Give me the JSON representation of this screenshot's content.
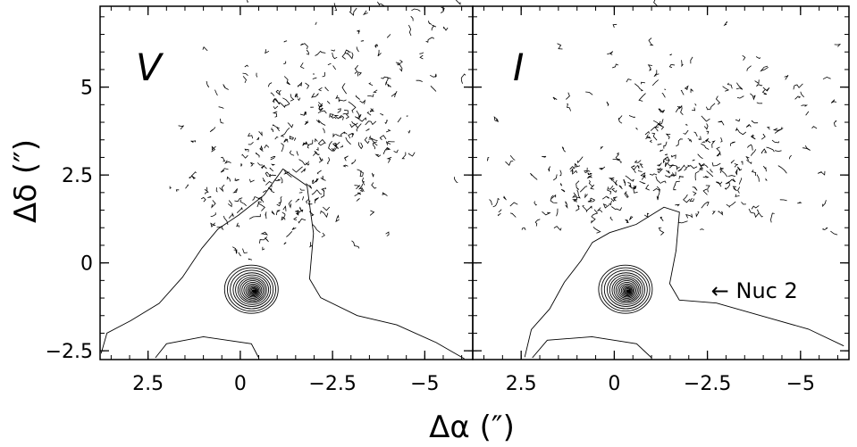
{
  "chart_data": {
    "type": "contour",
    "xlabel": "Δα (″)",
    "ylabel": "Δδ (″)",
    "xlim": [
      3.8,
      -6.3
    ],
    "ylim": [
      -2.75,
      7.3
    ],
    "x_ticks": [
      {
        "value": 2.5,
        "label": "2.5"
      },
      {
        "value": 0,
        "label": "0"
      },
      {
        "value": -2.5,
        "label": "−2.5"
      },
      {
        "value": -5,
        "label": "−5"
      }
    ],
    "y_ticks": [
      {
        "value": 5,
        "label": "5"
      },
      {
        "value": 2.5,
        "label": "2.5"
      },
      {
        "value": 0,
        "label": "0"
      },
      {
        "value": -2.5,
        "label": "−2.5"
      }
    ],
    "grid": false,
    "panels": [
      {
        "label": "V",
        "nucleus": {
          "x": -0.3,
          "y": -0.75
        },
        "annotations": []
      },
      {
        "label": "I",
        "nucleus": {
          "x": -0.3,
          "y": -0.75
        },
        "annotations": [
          {
            "text": "← Nuc 2",
            "x": -2.6,
            "y": -0.8
          }
        ]
      }
    ]
  }
}
